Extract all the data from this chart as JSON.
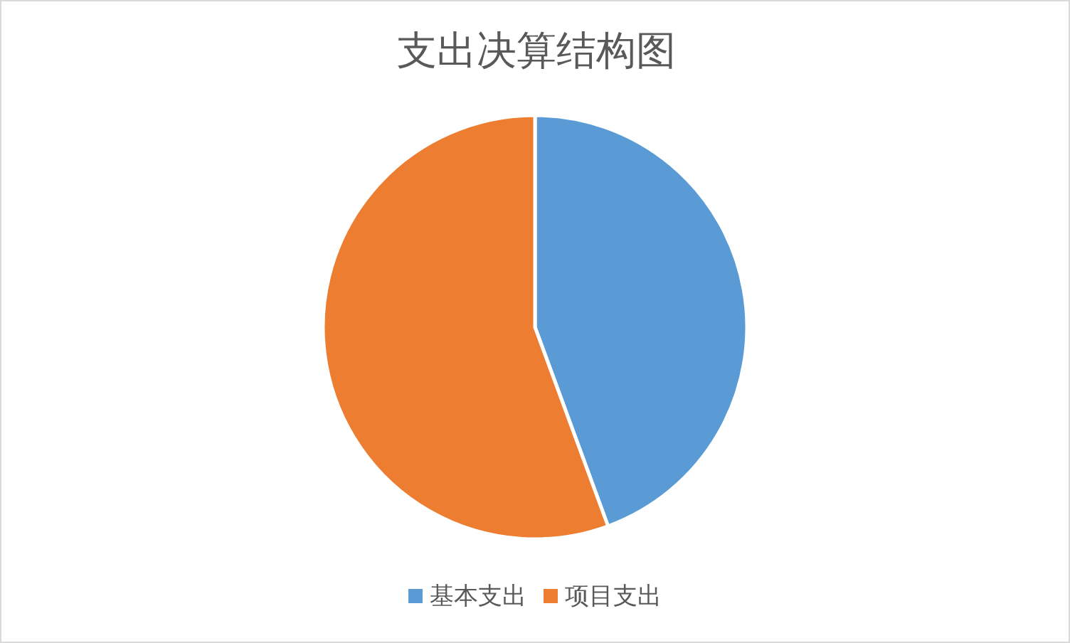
{
  "chart_data": {
    "type": "pie",
    "title": "支出决算结构图",
    "categories": [
      "基本支出",
      "项目支出"
    ],
    "values": [
      44.4,
      55.6
    ],
    "colors": [
      "#5b9bd5",
      "#ed7d31"
    ],
    "legend": "bottom"
  }
}
